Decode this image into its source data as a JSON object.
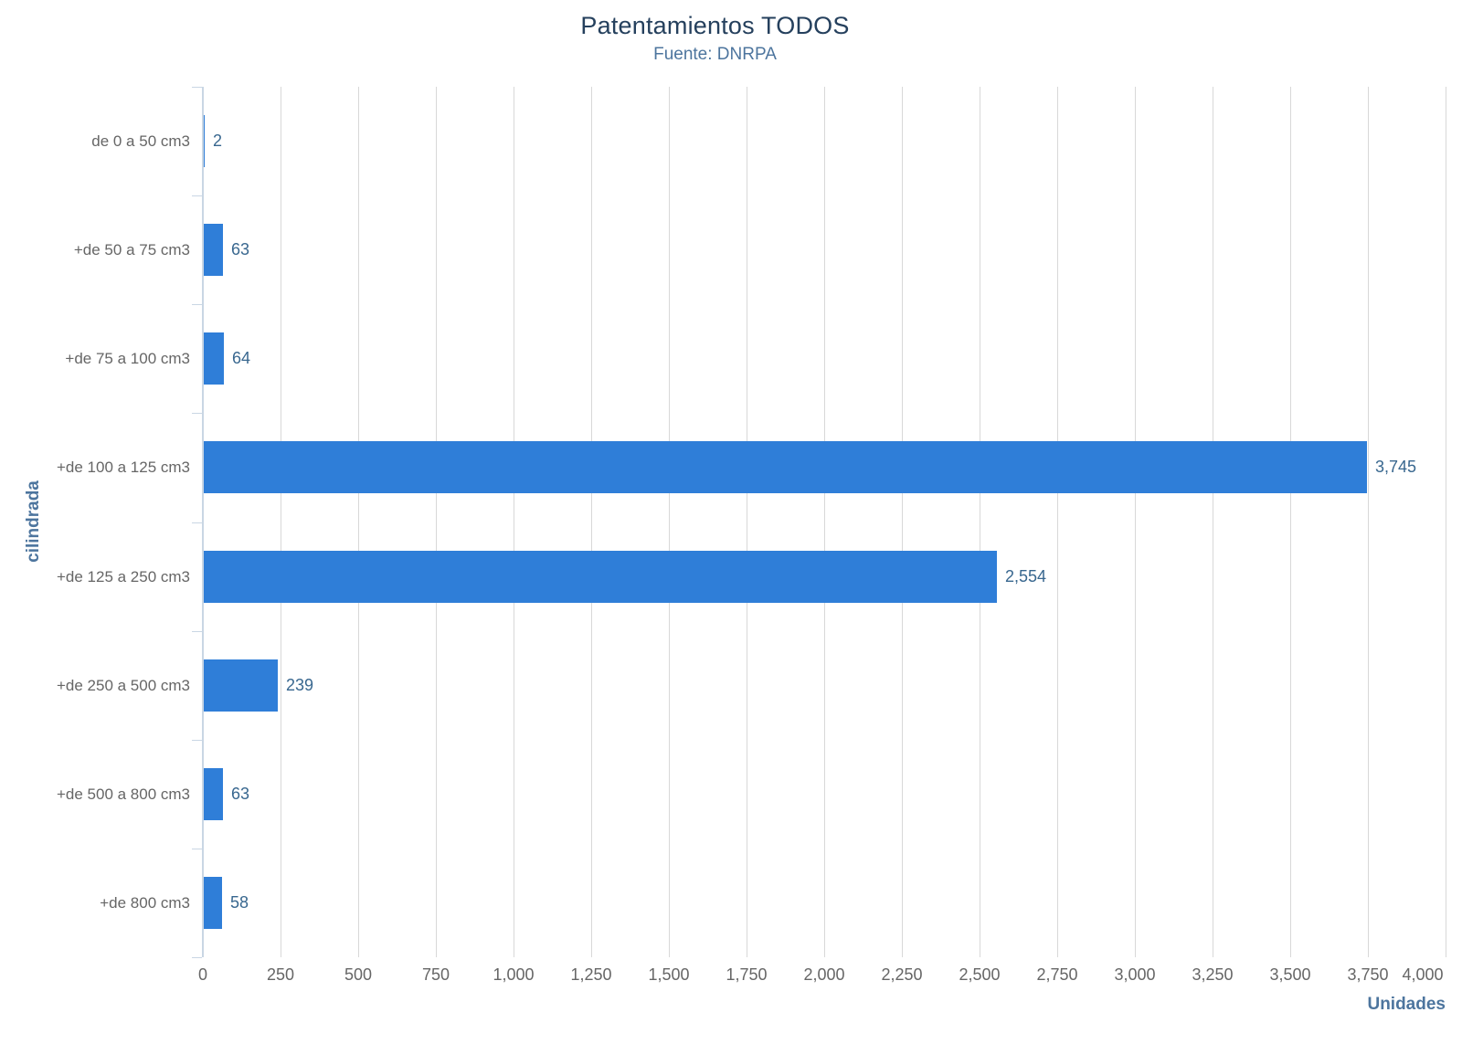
{
  "chart_data": {
    "type": "bar",
    "orientation": "horizontal",
    "title": "Patentamientos TODOS",
    "subtitle": "Fuente: DNRPA",
    "categories": [
      "de 0 a 50 cm3",
      "+de 50 a 75 cm3",
      "+de 75 a 100 cm3",
      "+de 100 a 125 cm3",
      "+de 125 a 250 cm3",
      "+de 250 a 500 cm3",
      "+de 500 a 800 cm3",
      "+de 800 cm3"
    ],
    "values": [
      2,
      63,
      64,
      3745,
      2554,
      239,
      63,
      58
    ],
    "value_labels": [
      "2",
      "63",
      "64",
      "3,745",
      "2,554",
      "239",
      "63",
      "58"
    ],
    "xlabel": "Unidades",
    "ylabel": "cilindrada",
    "xlim": [
      0,
      4000
    ],
    "tick_interval": 250,
    "x_tick_labels": [
      "0",
      "250",
      "500",
      "750",
      "1,000",
      "1,250",
      "1,500",
      "1,750",
      "2,000",
      "2,250",
      "2,500",
      "2,750",
      "3,000",
      "3,250",
      "3,500",
      "3,750",
      "4,000"
    ],
    "grid": true,
    "legend": "none",
    "colors": {
      "bar": "#2f7ed8",
      "title": "#25405d",
      "subtitle": "#4d759e",
      "axis_title": "#4d759e",
      "category_label": "#666666",
      "tick_label": "#666666",
      "value_label": "#38678f",
      "gridline": "#d8d8d8",
      "axis_line": "#c9d6e4"
    }
  }
}
